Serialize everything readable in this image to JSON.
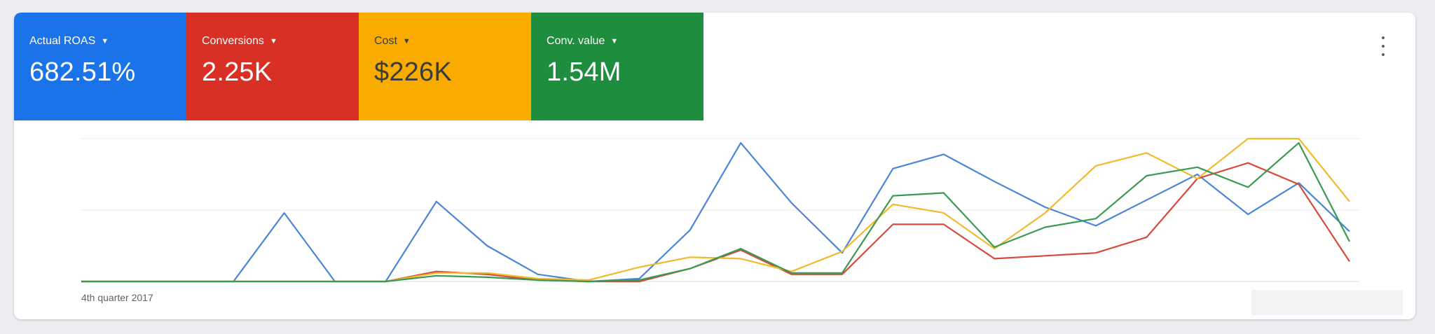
{
  "tiles": [
    {
      "label": "Actual ROAS",
      "value": "682.51%",
      "color": "#1a73e8"
    },
    {
      "label": "Conversions",
      "value": "2.25K",
      "color": "#d93025"
    },
    {
      "label": "Cost",
      "value": "$226K",
      "color": "#f9ab00"
    },
    {
      "label": "Conv. value",
      "value": "1.54M",
      "color": "#1e8e3e"
    }
  ],
  "icons": {
    "dropdown": "caret-down-icon",
    "menu": "more-vert-icon"
  },
  "chart_data": {
    "type": "line",
    "xlabel": "4th quarter 2017",
    "ylim": [
      0,
      100
    ],
    "grid": true,
    "series": [
      {
        "color": "#4a86d4",
        "values": [
          0,
          0,
          0,
          0,
          48,
          0,
          0,
          56,
          25,
          5,
          0,
          2,
          36,
          97,
          55,
          20,
          79,
          89,
          70,
          52,
          39,
          57,
          75,
          47,
          69,
          35
        ]
      },
      {
        "color": "#d64a3c",
        "values": [
          0,
          0,
          0,
          0,
          0,
          0,
          0,
          7,
          5,
          1,
          0,
          0,
          9,
          22,
          5,
          5,
          40,
          40,
          16,
          18,
          20,
          31,
          72,
          83,
          68,
          14
        ]
      },
      {
        "color": "#f2b92c",
        "values": [
          0,
          0,
          0,
          0,
          0,
          0,
          0,
          6,
          6,
          2,
          1,
          10,
          17,
          16,
          7,
          21,
          54,
          48,
          23,
          48,
          81,
          90,
          72,
          100,
          100,
          56
        ]
      },
      {
        "color": "#3a9a52",
        "values": [
          0,
          0,
          0,
          0,
          0,
          0,
          0,
          4,
          3,
          1,
          0,
          1,
          9,
          23,
          6,
          6,
          60,
          62,
          24,
          38,
          44,
          74,
          80,
          66,
          97,
          28
        ]
      }
    ]
  }
}
